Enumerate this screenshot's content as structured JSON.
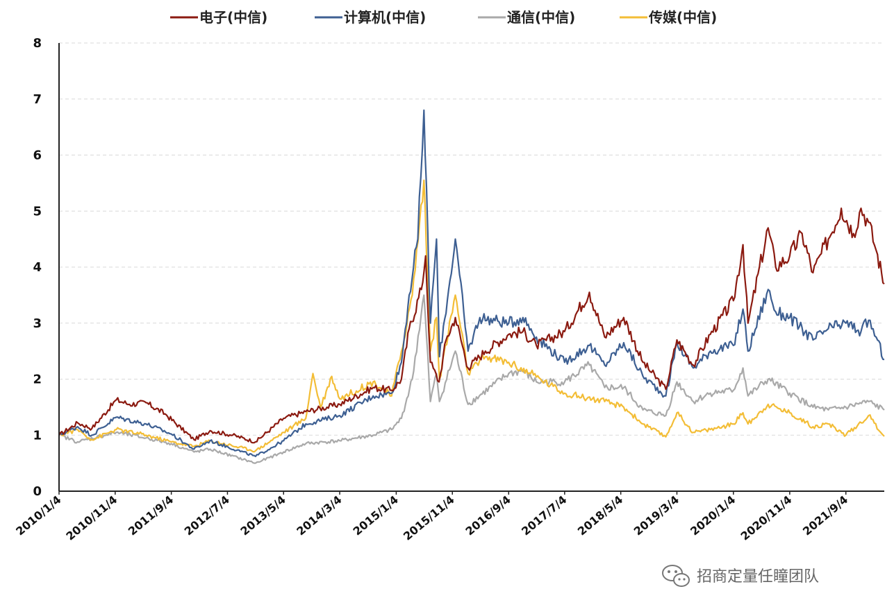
{
  "chart_data": {
    "type": "line",
    "title": "",
    "xlabel": "",
    "ylabel": "",
    "ylim": [
      0,
      8
    ],
    "yticks": [
      "0",
      "1",
      "2",
      "3",
      "4",
      "5",
      "6",
      "7",
      "8"
    ],
    "grid": "horizontal dashed",
    "legend_position": "top",
    "x_ticks": [
      "2010/1/4",
      "2010/11/4",
      "2011/9/4",
      "2012/7/4",
      "2013/5/4",
      "2014/3/4",
      "2015/1/4",
      "2015/11/4",
      "2016/9/4",
      "2017/7/4",
      "2018/5/4",
      "2019/3/4",
      "2020/1/4",
      "2020/11/4",
      "2021/9/4"
    ],
    "x_range": [
      "2010/1/4",
      "2022/3/31"
    ],
    "series": [
      {
        "name": "电子(中信)",
        "color": "#8B1A10",
        "points": [
          [
            "2010/1/4",
            1.0
          ],
          [
            "2010/4/15",
            1.22
          ],
          [
            "2010/7/1",
            1.12
          ],
          [
            "2010/11/10",
            1.63
          ],
          [
            "2011/1/20",
            1.55
          ],
          [
            "2011/4/20",
            1.58
          ],
          [
            "2011/8/1",
            1.38
          ],
          [
            "2012/1/5",
            0.92
          ],
          [
            "2012/4/1",
            1.08
          ],
          [
            "2012/8/1",
            1.0
          ],
          [
            "2012/12/3",
            0.88
          ],
          [
            "2013/5/4",
            1.3
          ],
          [
            "2013/9/1",
            1.42
          ],
          [
            "2014/3/4",
            1.55
          ],
          [
            "2014/9/1",
            1.85
          ],
          [
            "2014/12/10",
            1.8
          ],
          [
            "2015/2/1",
            2.0
          ],
          [
            "2015/3/15",
            2.9
          ],
          [
            "2015/5/20",
            3.6
          ],
          [
            "2015/6/12",
            4.2
          ],
          [
            "2015/7/8",
            2.3
          ],
          [
            "2015/8/24",
            1.95
          ],
          [
            "2015/10/1",
            2.7
          ],
          [
            "2015/11/20",
            3.1
          ],
          [
            "2016/1/28",
            2.2
          ],
          [
            "2016/5/1",
            2.5
          ],
          [
            "2016/9/4",
            2.8
          ],
          [
            "2016/11/20",
            2.85
          ],
          [
            "2017/2/1",
            2.6
          ],
          [
            "2017/7/4",
            2.85
          ],
          [
            "2017/11/15",
            3.55
          ],
          [
            "2018/2/6",
            2.75
          ],
          [
            "2018/5/20",
            3.1
          ],
          [
            "2018/9/1",
            2.3
          ],
          [
            "2019/1/3",
            1.82
          ],
          [
            "2019/3/4",
            2.7
          ],
          [
            "2019/6/1",
            2.25
          ],
          [
            "2019/9/1",
            2.8
          ],
          [
            "2020/1/4",
            3.4
          ],
          [
            "2020/2/25",
            4.4
          ],
          [
            "2020/3/23",
            3.0
          ],
          [
            "2020/7/10",
            4.7
          ],
          [
            "2020/8/20",
            4.0
          ],
          [
            "2020/11/4",
            4.2
          ],
          [
            "2021/1/10",
            4.6
          ],
          [
            "2021/3/10",
            3.9
          ],
          [
            "2021/6/1",
            4.5
          ],
          [
            "2021/8/10",
            5.05
          ],
          [
            "2021/10/15",
            4.6
          ],
          [
            "2021/11/25",
            5.05
          ],
          [
            "2022/1/5",
            4.8
          ],
          [
            "2022/2/15",
            4.3
          ],
          [
            "2022/3/31",
            3.7
          ]
        ]
      },
      {
        "name": "计算机(中信)",
        "color": "#3D5F92",
        "points": [
          [
            "2010/1/4",
            1.0
          ],
          [
            "2010/4/15",
            1.15
          ],
          [
            "2010/7/1",
            1.0
          ],
          [
            "2010/11/10",
            1.32
          ],
          [
            "2011/4/20",
            1.2
          ],
          [
            "2011/9/4",
            1.02
          ],
          [
            "2012/1/5",
            0.75
          ],
          [
            "2012/4/1",
            0.9
          ],
          [
            "2012/12/3",
            0.62
          ],
          [
            "2013/5/4",
            0.9
          ],
          [
            "2013/9/1",
            1.2
          ],
          [
            "2014/3/4",
            1.35
          ],
          [
            "2014/9/1",
            1.7
          ],
          [
            "2014/12/10",
            1.75
          ],
          [
            "2015/2/1",
            2.3
          ],
          [
            "2015/3/15",
            3.5
          ],
          [
            "2015/5/1",
            4.5
          ],
          [
            "2015/6/3",
            6.8
          ],
          [
            "2015/7/8",
            3.0
          ],
          [
            "2015/8/10",
            4.5
          ],
          [
            "2015/8/26",
            2.4
          ],
          [
            "2015/10/15",
            3.6
          ],
          [
            "2015/11/20",
            4.5
          ],
          [
            "2016/1/28",
            2.5
          ],
          [
            "2016/4/1",
            3.1
          ],
          [
            "2016/9/4",
            3.0
          ],
          [
            "2016/11/20",
            3.1
          ],
          [
            "2017/2/1",
            2.75
          ],
          [
            "2017/7/4",
            2.3
          ],
          [
            "2017/11/15",
            2.6
          ],
          [
            "2018/2/6",
            2.25
          ],
          [
            "2018/5/20",
            2.65
          ],
          [
            "2018/9/1",
            2.05
          ],
          [
            "2019/1/3",
            1.7
          ],
          [
            "2019/3/4",
            2.65
          ],
          [
            "2019/6/1",
            2.2
          ],
          [
            "2019/9/1",
            2.5
          ],
          [
            "2020/1/4",
            2.6
          ],
          [
            "2020/2/25",
            3.25
          ],
          [
            "2020/3/23",
            2.5
          ],
          [
            "2020/7/10",
            3.6
          ],
          [
            "2020/8/20",
            3.2
          ],
          [
            "2020/11/4",
            3.1
          ],
          [
            "2021/3/10",
            2.7
          ],
          [
            "2021/6/1",
            2.9
          ],
          [
            "2021/9/4",
            3.0
          ],
          [
            "2021/11/25",
            2.85
          ],
          [
            "2022/1/5",
            3.05
          ],
          [
            "2022/2/15",
            2.75
          ],
          [
            "2022/3/31",
            2.35
          ]
        ]
      },
      {
        "name": "通信(中信)",
        "color": "#A9A9A9",
        "points": [
          [
            "2010/1/4",
            1.0
          ],
          [
            "2010/4/15",
            0.88
          ],
          [
            "2010/11/10",
            1.05
          ],
          [
            "2011/4/20",
            0.95
          ],
          [
            "2011/9/4",
            0.85
          ],
          [
            "2012/1/5",
            0.7
          ],
          [
            "2012/4/1",
            0.75
          ],
          [
            "2012/12/3",
            0.5
          ],
          [
            "2013/5/4",
            0.7
          ],
          [
            "2013/9/1",
            0.85
          ],
          [
            "2014/3/4",
            0.9
          ],
          [
            "2014/9/1",
            1.0
          ],
          [
            "2014/12/10",
            1.1
          ],
          [
            "2015/2/1",
            1.3
          ],
          [
            "2015/4/1",
            2.0
          ],
          [
            "2015/6/3",
            3.5
          ],
          [
            "2015/7/8",
            1.6
          ],
          [
            "2015/8/10",
            2.1
          ],
          [
            "2015/8/26",
            1.6
          ],
          [
            "2015/11/20",
            2.5
          ],
          [
            "2016/1/28",
            1.55
          ],
          [
            "2016/9/4",
            2.1
          ],
          [
            "2016/11/20",
            2.15
          ],
          [
            "2017/2/1",
            1.95
          ],
          [
            "2017/7/4",
            1.95
          ],
          [
            "2017/11/15",
            2.25
          ],
          [
            "2018/2/6",
            1.85
          ],
          [
            "2018/5/20",
            1.85
          ],
          [
            "2018/9/1",
            1.45
          ],
          [
            "2019/1/3",
            1.35
          ],
          [
            "2019/3/4",
            1.95
          ],
          [
            "2019/6/1",
            1.6
          ],
          [
            "2019/9/1",
            1.75
          ],
          [
            "2020/1/4",
            1.8
          ],
          [
            "2020/2/25",
            2.2
          ],
          [
            "2020/3/23",
            1.7
          ],
          [
            "2020/7/10",
            2.0
          ],
          [
            "2020/11/4",
            1.75
          ],
          [
            "2021/3/10",
            1.5
          ],
          [
            "2021/6/1",
            1.45
          ],
          [
            "2021/9/4",
            1.5
          ],
          [
            "2022/1/5",
            1.6
          ],
          [
            "2022/3/31",
            1.45
          ]
        ]
      },
      {
        "name": "传媒(中信)",
        "color": "#F3BD36",
        "points": [
          [
            "2010/1/4",
            1.0
          ],
          [
            "2010/4/15",
            1.1
          ],
          [
            "2010/7/1",
            0.92
          ],
          [
            "2010/11/10",
            1.1
          ],
          [
            "2011/4/20",
            1.0
          ],
          [
            "2011/9/4",
            0.88
          ],
          [
            "2012/1/5",
            0.8
          ],
          [
            "2012/4/1",
            0.9
          ],
          [
            "2012/12/3",
            0.72
          ],
          [
            "2013/5/4",
            1.05
          ],
          [
            "2013/9/1",
            1.3
          ],
          [
            "2013/10/10",
            2.1
          ],
          [
            "2013/11/20",
            1.5
          ],
          [
            "2014/1/20",
            2.05
          ],
          [
            "2014/3/4",
            1.65
          ],
          [
            "2014/9/1",
            1.95
          ],
          [
            "2014/12/10",
            1.7
          ],
          [
            "2015/2/1",
            2.5
          ],
          [
            "2015/4/1",
            3.5
          ],
          [
            "2015/6/3",
            5.55
          ],
          [
            "2015/7/8",
            2.5
          ],
          [
            "2015/8/10",
            3.1
          ],
          [
            "2015/8/26",
            2.0
          ],
          [
            "2015/11/20",
            3.5
          ],
          [
            "2016/1/28",
            2.1
          ],
          [
            "2016/5/1",
            2.4
          ],
          [
            "2016/9/4",
            2.3
          ],
          [
            "2017/1/1",
            2.1
          ],
          [
            "2017/7/4",
            1.75
          ],
          [
            "2018/2/6",
            1.6
          ],
          [
            "2018/5/20",
            1.5
          ],
          [
            "2018/9/1",
            1.2
          ],
          [
            "2019/1/3",
            0.97
          ],
          [
            "2019/3/4",
            1.4
          ],
          [
            "2019/6/1",
            1.05
          ],
          [
            "2019/9/1",
            1.1
          ],
          [
            "2020/1/4",
            1.2
          ],
          [
            "2020/2/25",
            1.4
          ],
          [
            "2020/3/23",
            1.2
          ],
          [
            "2020/7/10",
            1.55
          ],
          [
            "2020/11/4",
            1.4
          ],
          [
            "2021/3/10",
            1.15
          ],
          [
            "2021/6/1",
            1.2
          ],
          [
            "2021/9/4",
            1.0
          ],
          [
            "2022/1/5",
            1.35
          ],
          [
            "2022/3/31",
            0.98
          ]
        ]
      }
    ]
  },
  "watermark": {
    "icon": "wechat-icon",
    "text": "招商定量任瞳团队"
  }
}
